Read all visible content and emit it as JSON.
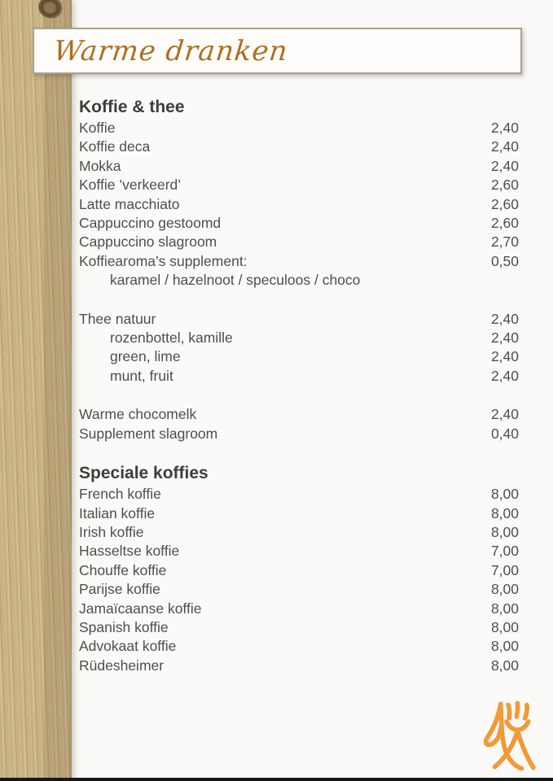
{
  "page": {
    "banner_title": "Warme dranken",
    "background_color": "#fbfaf8",
    "banner_border_color": "#a9a28b",
    "banner_title_color": "#b06e20",
    "text_color": "#4e4e4e",
    "logo_color": "#f29a38"
  },
  "menu": {
    "sections": [
      {
        "title": "Koffie & thee",
        "rows": [
          {
            "label": "Koffie",
            "price": "2,40"
          },
          {
            "label": "Koffie deca",
            "price": "2,40"
          },
          {
            "label": "Mokka",
            "price": "2,40"
          },
          {
            "label": "Koffie ’verkeerd’",
            "price": "2,60"
          },
          {
            "label": "Latte macchiato",
            "price": "2,60"
          },
          {
            "label": "Cappuccino gestoomd",
            "price": "2,60"
          },
          {
            "label": "Cappuccino slagroom",
            "price": "2,70"
          },
          {
            "label": "Koffiearoma’s supplement:",
            "price": "0,50"
          },
          {
            "label": "karamel / hazelnoot / speculoos / choco",
            "indent": true
          },
          {
            "spacer": true
          },
          {
            "label": "Thee natuur",
            "price": "2,40"
          },
          {
            "label": "rozenbottel, kamille",
            "price": "2,40",
            "indent": true
          },
          {
            "label": "green, lime",
            "price": "2,40",
            "indent": true
          },
          {
            "label": "munt, fruit",
            "price": "2,40",
            "indent": true
          },
          {
            "spacer": true
          },
          {
            "label": "Warme chocomelk",
            "price": "2,40"
          },
          {
            "label": "Supplement slagroom",
            "price": "0,40"
          }
        ]
      },
      {
        "title": "Speciale koffies",
        "rows": [
          {
            "label": "French koffie",
            "price": "8,00"
          },
          {
            "label": "Italian koffie",
            "price": "8,00"
          },
          {
            "label": "Irish koffie",
            "price": "8,00"
          },
          {
            "label": "Hasseltse koffie",
            "price": "7,00"
          },
          {
            "label": "Chouffe koffie",
            "price": "7,00"
          },
          {
            "label": "Parijse koffie",
            "price": "8,00"
          },
          {
            "label": "Jamaïcaanse koffie",
            "price": "8,00"
          },
          {
            "label": "Spanish koffie",
            "price": "8,00"
          },
          {
            "label": "Advokaat koffie",
            "price": "8,00"
          },
          {
            "label": "Rüdesheimer",
            "price": "8,00"
          }
        ]
      }
    ]
  }
}
